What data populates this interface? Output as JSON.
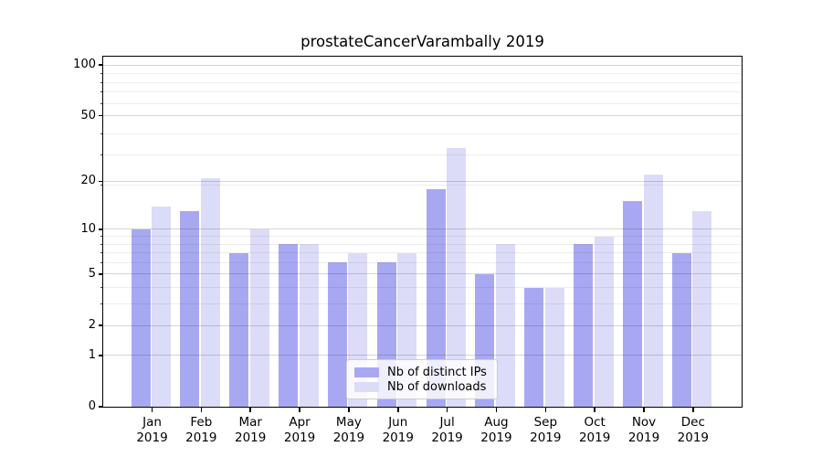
{
  "chart_data": {
    "type": "bar",
    "title": "prostateCancerVarambally 2019",
    "categories": [
      "Jan 2019",
      "Feb 2019",
      "Mar 2019",
      "Apr 2019",
      "May 2019",
      "Jun 2019",
      "Jul 2019",
      "Aug 2019",
      "Sep 2019",
      "Oct 2019",
      "Nov 2019",
      "Dec 2019"
    ],
    "series": [
      {
        "name": "Nb of distinct IPs",
        "color": "#a8a8f2",
        "values": [
          10,
          13,
          7,
          8,
          6,
          6,
          18,
          5,
          4,
          8,
          15,
          7
        ]
      },
      {
        "name": "Nb of downloads",
        "color": "#dcdcf8",
        "values": [
          14,
          21,
          10,
          8,
          7,
          7,
          32,
          8,
          4,
          9,
          22,
          13
        ]
      }
    ],
    "xlabel": "",
    "ylabel": "",
    "y_scale": "log10(1+y)",
    "y_ticks": [
      0,
      1,
      2,
      5,
      10,
      20,
      50,
      100
    ],
    "y_minor_gridlines": [
      3,
      4,
      6,
      7,
      8,
      9,
      19,
      29,
      39,
      59,
      69,
      79,
      89
    ],
    "ylim": [
      0,
      112
    ],
    "grid": true,
    "legend_position": "lower center"
  },
  "colors": {
    "bar_distinct_ips": "#a8a8f2",
    "bar_downloads": "#dcdcf8",
    "grid_major": "#d5d5d5",
    "grid_minor": "#ececec",
    "axis": "#000000",
    "background": "#ffffff"
  }
}
